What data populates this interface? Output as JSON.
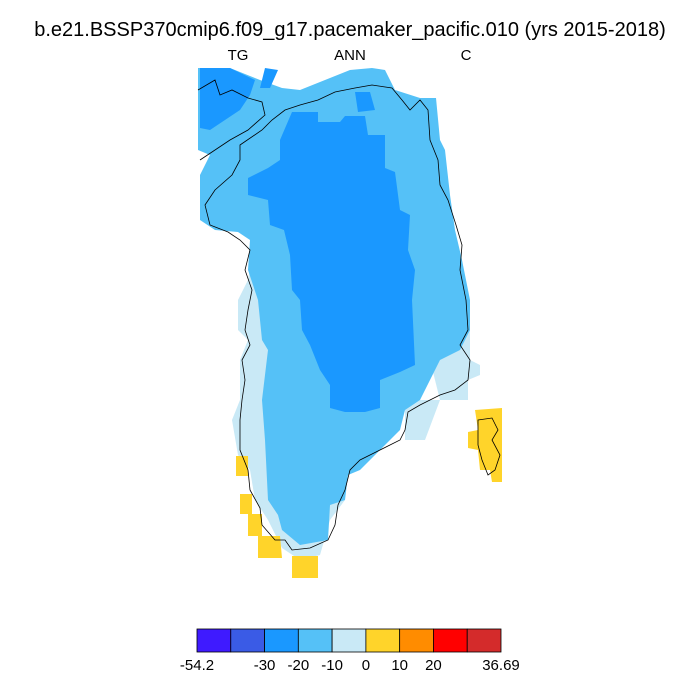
{
  "chart_data": {
    "type": "heatmap",
    "title": "b.e21.BSSP370cmip6.f09_g17.pacemaker_pacific.010 (yrs 2015-2018)",
    "left_label": "TG",
    "center_label": "ANN",
    "right_label": "C",
    "colorbar": {
      "colors": [
        "#3f1aff",
        "#3a5be6",
        "#1a98ff",
        "#55c1f7",
        "#c9e9f6",
        "#ffd42a",
        "#ff8c00",
        "#ff0000",
        "#d42b2b"
      ],
      "tick_labels": [
        "-54.2",
        "-30",
        "-20",
        "-10",
        "0",
        "10",
        "20",
        "36.69"
      ],
      "min": -54.2,
      "max": 36.69,
      "levels": [
        -40,
        -30,
        -20,
        -10,
        0,
        10,
        20,
        30
      ]
    },
    "regions": [
      {
        "class": "0 to 10",
        "color": "#ffd42a"
      },
      {
        "class": "-10 to 0",
        "color": "#c9e9f6"
      },
      {
        "class": "-20 to -10",
        "color": "#55c1f7"
      },
      {
        "class": "-30 to -20",
        "color": "#1a98ff"
      }
    ]
  }
}
